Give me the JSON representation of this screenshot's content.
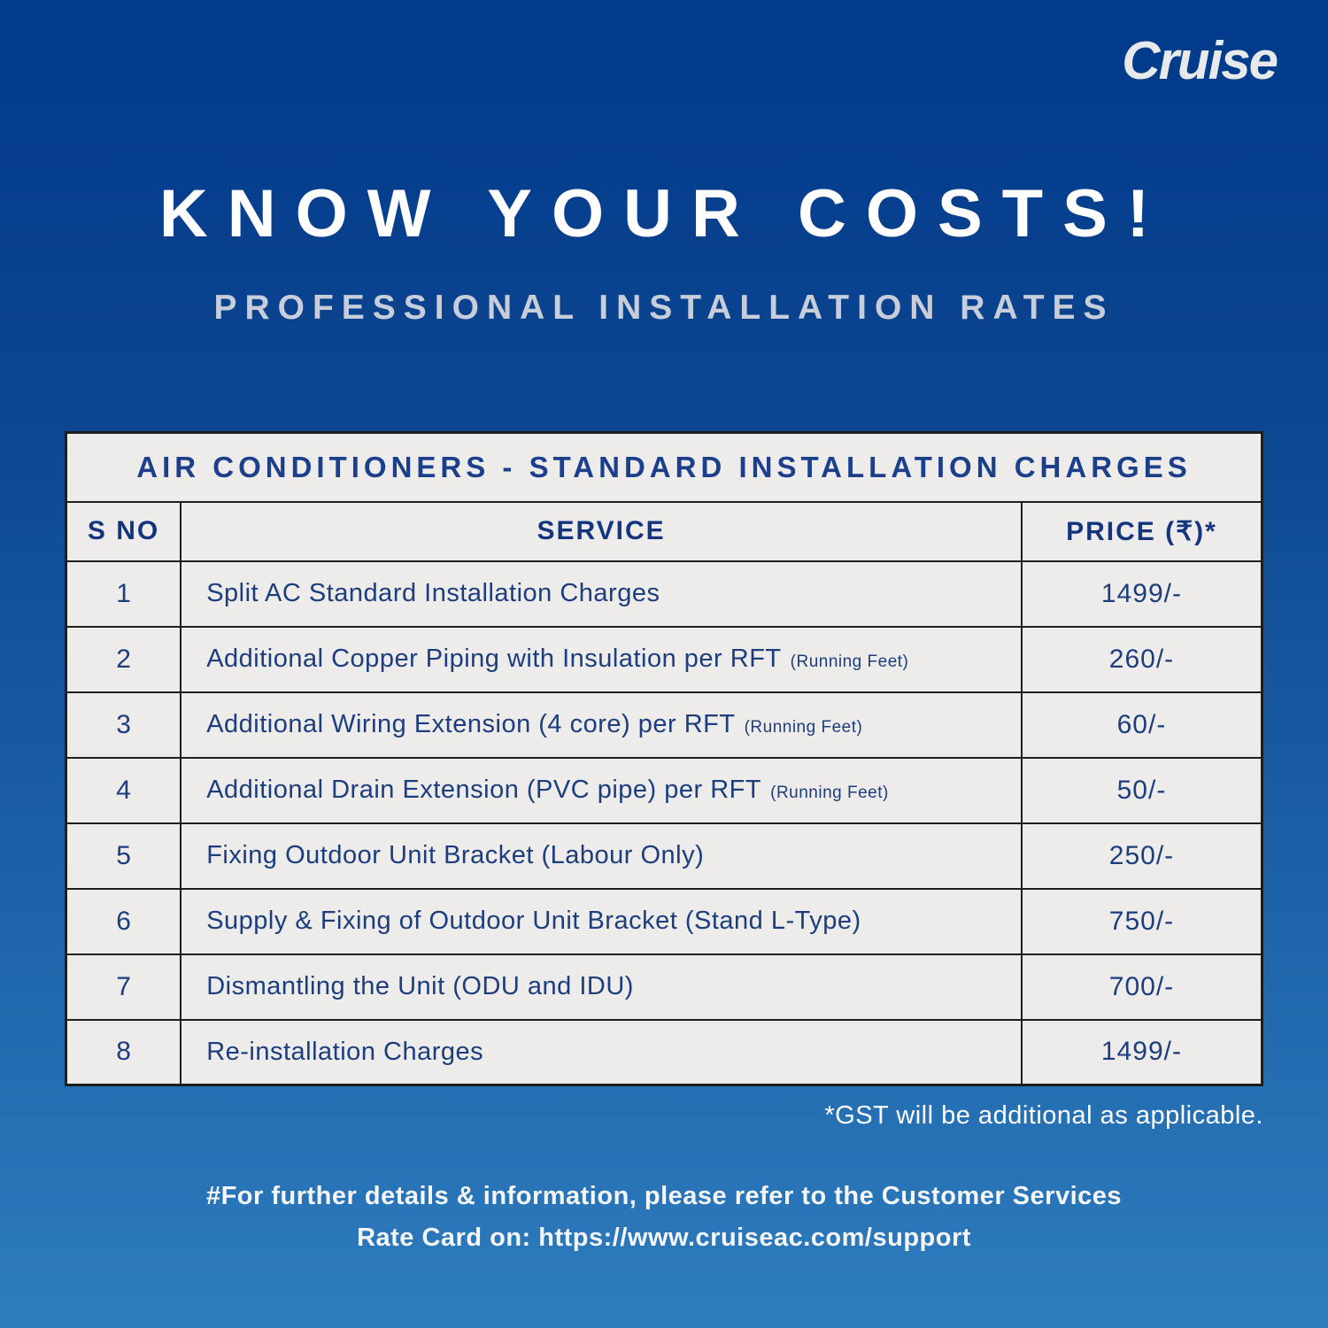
{
  "brand": {
    "logo_text": "Cruise"
  },
  "header": {
    "title": "KNOW YOUR COSTS!",
    "subtitle": "PROFESSIONAL INSTALLATION RATES"
  },
  "table": {
    "title": "AIR CONDITIONERS - STANDARD INSTALLATION CHARGES",
    "columns": [
      "S NO",
      "SERVICE",
      "PRICE (₹)*"
    ],
    "rows": [
      {
        "sno": "1",
        "service": "Split AC Standard Installation Charges",
        "note": "",
        "price": "1499/-"
      },
      {
        "sno": "2",
        "service": "Additional Copper Piping with Insulation per RFT",
        "note": "(Running Feet)",
        "price": "260/-"
      },
      {
        "sno": "3",
        "service": "Additional Wiring Extension (4 core) per RFT",
        "note": "(Running Feet)",
        "price": "60/-"
      },
      {
        "sno": "4",
        "service": "Additional Drain Extension (PVC pipe) per RFT",
        "note": "(Running Feet)",
        "price": "50/-"
      },
      {
        "sno": "5",
        "service": "Fixing Outdoor Unit Bracket (Labour Only)",
        "note": "",
        "price": "250/-"
      },
      {
        "sno": "6",
        "service": "Supply & Fixing of Outdoor Unit Bracket (Stand L-Type)",
        "note": "",
        "price": "750/-"
      },
      {
        "sno": "7",
        "service": "Dismantling the Unit (ODU and IDU)",
        "note": "",
        "price": "700/-"
      },
      {
        "sno": "8",
        "service": "Re-installation Charges",
        "note": "",
        "price": "1499/-"
      }
    ]
  },
  "notes": {
    "gst": "*GST will be additional as applicable.",
    "footer_line1": "#For further details & information, please refer to the Customer Services",
    "footer_line2": "Rate Card on: https://www.cruiseac.com/support"
  },
  "colors": {
    "bg_top": "#023a8c",
    "bg_bottom": "#2e7cbe",
    "table_bg": "#edecea",
    "table_border": "#1e1e1e",
    "navy_text": "#1c3d7e",
    "heading_white": "#ffffff",
    "subtitle_gray": "#c7ced9"
  }
}
